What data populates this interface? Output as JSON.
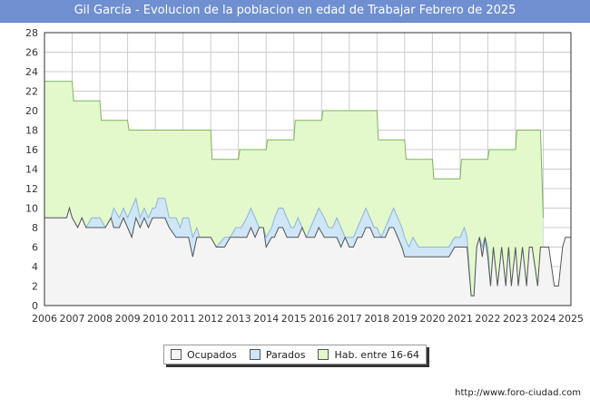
{
  "chart_data": {
    "type": "area",
    "title": "Gil García - Evolucion de la poblacion en edad de Trabajar Febrero de 2025",
    "xlabel": "",
    "ylabel": "",
    "xlim": [
      2006,
      2025
    ],
    "ylim": [
      0,
      28
    ],
    "x_ticks": [
      "2006",
      "2007",
      "2008",
      "2009",
      "2010",
      "2011",
      "2012",
      "2013",
      "2014",
      "2015",
      "2016",
      "2017",
      "2018",
      "2019",
      "2020",
      "2021",
      "2022",
      "2023",
      "2024",
      "2025"
    ],
    "y_ticks": [
      "0",
      "2",
      "4",
      "6",
      "8",
      "10",
      "12",
      "14",
      "16",
      "18",
      "20",
      "22",
      "24",
      "26",
      "28"
    ],
    "legend": [
      "Ocupados",
      "Parados",
      "Hab. entre 16-64"
    ],
    "colors": {
      "ocupados_fill": "#f4f4f4",
      "ocupados_line": "#555555",
      "parados_fill": "#cfe6f7",
      "parados_line": "#8fb4d9",
      "hab_fill": "#e3f9cc",
      "hab_line": "#7fb35a",
      "grid": "#cccccc"
    },
    "series": [
      {
        "name": "Hab. entre 16-64",
        "points": [
          [
            2006,
            23
          ],
          [
            2007,
            23
          ],
          [
            2007.05,
            21
          ],
          [
            2008,
            21
          ],
          [
            2008.05,
            19
          ],
          [
            2009,
            19
          ],
          [
            2009.05,
            18
          ],
          [
            2012,
            18
          ],
          [
            2012.05,
            15
          ],
          [
            2013,
            15
          ],
          [
            2013.05,
            16
          ],
          [
            2014,
            16
          ],
          [
            2014.05,
            17
          ],
          [
            2015,
            17
          ],
          [
            2015.05,
            19
          ],
          [
            2016,
            19
          ],
          [
            2016.05,
            20
          ],
          [
            2018,
            20
          ],
          [
            2018.05,
            17
          ],
          [
            2019,
            17
          ],
          [
            2019.05,
            15
          ],
          [
            2020,
            15
          ],
          [
            2020.05,
            13
          ],
          [
            2021,
            13
          ],
          [
            2021.05,
            15
          ],
          [
            2022,
            15
          ],
          [
            2022.05,
            16
          ],
          [
            2023,
            16
          ],
          [
            2023.05,
            18
          ],
          [
            2023.9,
            18
          ],
          [
            2024,
            9
          ]
        ]
      },
      {
        "name": "Parados",
        "points": [
          [
            2006,
            9
          ],
          [
            2006.8,
            9
          ],
          [
            2006.9,
            10
          ],
          [
            2007,
            9
          ],
          [
            2007.2,
            8
          ],
          [
            2007.35,
            9
          ],
          [
            2007.5,
            8
          ],
          [
            2007.7,
            9
          ],
          [
            2008,
            9
          ],
          [
            2008.2,
            8
          ],
          [
            2008.4,
            9
          ],
          [
            2008.5,
            10
          ],
          [
            2008.7,
            9
          ],
          [
            2008.85,
            10
          ],
          [
            2009,
            9
          ],
          [
            2009.15,
            10
          ],
          [
            2009.3,
            11
          ],
          [
            2009.45,
            9
          ],
          [
            2009.6,
            10
          ],
          [
            2009.75,
            9
          ],
          [
            2009.9,
            10
          ],
          [
            2010,
            10
          ],
          [
            2010.1,
            11
          ],
          [
            2010.35,
            11
          ],
          [
            2010.5,
            9
          ],
          [
            2010.75,
            9
          ],
          [
            2010.9,
            8
          ],
          [
            2011,
            9
          ],
          [
            2011.2,
            9
          ],
          [
            2011.35,
            7
          ],
          [
            2011.5,
            8
          ],
          [
            2011.6,
            7
          ],
          [
            2012,
            7
          ],
          [
            2012.2,
            6
          ],
          [
            2012.5,
            7
          ],
          [
            2012.7,
            7
          ],
          [
            2012.9,
            8
          ],
          [
            2013.1,
            8
          ],
          [
            2013.3,
            9
          ],
          [
            2013.45,
            10
          ],
          [
            2013.6,
            9
          ],
          [
            2013.75,
            8
          ],
          [
            2013.9,
            8
          ],
          [
            2014,
            7
          ],
          [
            2014.2,
            8
          ],
          [
            2014.3,
            9
          ],
          [
            2014.45,
            10
          ],
          [
            2014.6,
            10
          ],
          [
            2014.75,
            9
          ],
          [
            2014.9,
            8
          ],
          [
            2015,
            8
          ],
          [
            2015.15,
            9
          ],
          [
            2015.3,
            8
          ],
          [
            2015.45,
            7
          ],
          [
            2015.6,
            8
          ],
          [
            2015.75,
            9
          ],
          [
            2015.9,
            10
          ],
          [
            2016.1,
            9
          ],
          [
            2016.25,
            8
          ],
          [
            2016.4,
            8
          ],
          [
            2016.55,
            9
          ],
          [
            2016.7,
            8
          ],
          [
            2016.85,
            7
          ],
          [
            2017,
            7
          ],
          [
            2017.15,
            7
          ],
          [
            2017.3,
            8
          ],
          [
            2017.45,
            9
          ],
          [
            2017.6,
            10
          ],
          [
            2017.75,
            9
          ],
          [
            2017.9,
            8
          ],
          [
            2018,
            8
          ],
          [
            2018.15,
            7
          ],
          [
            2018.3,
            8
          ],
          [
            2018.45,
            9
          ],
          [
            2018.6,
            10
          ],
          [
            2018.75,
            9
          ],
          [
            2018.9,
            8
          ],
          [
            2019,
            7
          ],
          [
            2019.15,
            6
          ],
          [
            2019.3,
            7
          ],
          [
            2019.5,
            6
          ],
          [
            2020,
            6
          ],
          [
            2020.2,
            6
          ],
          [
            2020.4,
            6
          ],
          [
            2020.6,
            6
          ],
          [
            2020.8,
            7
          ],
          [
            2021,
            7
          ],
          [
            2021.15,
            8
          ],
          [
            2021.25,
            7
          ],
          [
            2021.4,
            1
          ],
          [
            2021.5,
            1
          ],
          [
            2021.6,
            6
          ],
          [
            2021.7,
            7
          ],
          [
            2021.8,
            6
          ],
          [
            2021.9,
            7
          ],
          [
            2022,
            6
          ],
          [
            2022.1,
            2
          ],
          [
            2022.2,
            6
          ],
          [
            2022.35,
            2
          ],
          [
            2022.5,
            6
          ],
          [
            2022.65,
            2
          ],
          [
            2022.75,
            6
          ],
          [
            2022.85,
            2
          ],
          [
            2023,
            6
          ],
          [
            2023.1,
            2
          ],
          [
            2023.25,
            6
          ],
          [
            2023.4,
            2
          ],
          [
            2023.5,
            6
          ],
          [
            2023.6,
            6
          ],
          [
            2023.8,
            2
          ],
          [
            2023.9,
            6
          ],
          [
            2024,
            6
          ]
        ]
      },
      {
        "name": "Ocupados",
        "points": [
          [
            2006,
            9
          ],
          [
            2006.8,
            9
          ],
          [
            2006.9,
            10
          ],
          [
            2007,
            9
          ],
          [
            2007.2,
            8
          ],
          [
            2007.35,
            9
          ],
          [
            2007.5,
            8
          ],
          [
            2007.7,
            8
          ],
          [
            2008,
            8
          ],
          [
            2008.2,
            8
          ],
          [
            2008.4,
            9
          ],
          [
            2008.5,
            8
          ],
          [
            2008.7,
            8
          ],
          [
            2008.85,
            9
          ],
          [
            2009,
            8
          ],
          [
            2009.15,
            7
          ],
          [
            2009.3,
            9
          ],
          [
            2009.45,
            8
          ],
          [
            2009.6,
            9
          ],
          [
            2009.75,
            8
          ],
          [
            2009.9,
            9
          ],
          [
            2010,
            9
          ],
          [
            2010.1,
            9
          ],
          [
            2010.35,
            9
          ],
          [
            2010.5,
            8
          ],
          [
            2010.75,
            7
          ],
          [
            2010.9,
            7
          ],
          [
            2011,
            7
          ],
          [
            2011.2,
            7
          ],
          [
            2011.35,
            5
          ],
          [
            2011.5,
            7
          ],
          [
            2011.6,
            7
          ],
          [
            2012,
            7
          ],
          [
            2012.2,
            6
          ],
          [
            2012.5,
            6
          ],
          [
            2012.7,
            7
          ],
          [
            2012.9,
            7
          ],
          [
            2013.1,
            7
          ],
          [
            2013.3,
            7
          ],
          [
            2013.45,
            8
          ],
          [
            2013.6,
            7
          ],
          [
            2013.75,
            8
          ],
          [
            2013.9,
            8
          ],
          [
            2014,
            6
          ],
          [
            2014.2,
            7
          ],
          [
            2014.3,
            7
          ],
          [
            2014.45,
            8
          ],
          [
            2014.6,
            8
          ],
          [
            2014.75,
            7
          ],
          [
            2014.9,
            7
          ],
          [
            2015,
            7
          ],
          [
            2015.15,
            7
          ],
          [
            2015.3,
            8
          ],
          [
            2015.45,
            7
          ],
          [
            2015.6,
            7
          ],
          [
            2015.75,
            7
          ],
          [
            2015.9,
            8
          ],
          [
            2016.1,
            7
          ],
          [
            2016.25,
            7
          ],
          [
            2016.4,
            7
          ],
          [
            2016.55,
            7
          ],
          [
            2016.7,
            6
          ],
          [
            2016.85,
            7
          ],
          [
            2017,
            6
          ],
          [
            2017.15,
            6
          ],
          [
            2017.3,
            7
          ],
          [
            2017.45,
            7
          ],
          [
            2017.6,
            8
          ],
          [
            2017.75,
            8
          ],
          [
            2017.9,
            7
          ],
          [
            2018,
            7
          ],
          [
            2018.15,
            7
          ],
          [
            2018.3,
            7
          ],
          [
            2018.45,
            8
          ],
          [
            2018.6,
            8
          ],
          [
            2018.75,
            7
          ],
          [
            2018.9,
            6
          ],
          [
            2019,
            5
          ],
          [
            2019.15,
            5
          ],
          [
            2019.3,
            5
          ],
          [
            2019.5,
            5
          ],
          [
            2020,
            5
          ],
          [
            2020.2,
            5
          ],
          [
            2020.4,
            5
          ],
          [
            2020.6,
            5
          ],
          [
            2020.8,
            6
          ],
          [
            2021,
            6
          ],
          [
            2021.15,
            6
          ],
          [
            2021.25,
            6
          ],
          [
            2021.4,
            1
          ],
          [
            2021.5,
            1
          ],
          [
            2021.6,
            6
          ],
          [
            2021.7,
            7
          ],
          [
            2021.8,
            5
          ],
          [
            2021.9,
            7
          ],
          [
            2022,
            5
          ],
          [
            2022.1,
            2
          ],
          [
            2022.2,
            6
          ],
          [
            2022.35,
            2
          ],
          [
            2022.5,
            6
          ],
          [
            2022.65,
            2
          ],
          [
            2022.75,
            6
          ],
          [
            2022.85,
            2
          ],
          [
            2023,
            6
          ],
          [
            2023.1,
            2
          ],
          [
            2023.25,
            6
          ],
          [
            2023.4,
            2
          ],
          [
            2023.5,
            6
          ],
          [
            2023.6,
            6
          ],
          [
            2023.8,
            2
          ],
          [
            2023.9,
            6
          ],
          [
            2024,
            6
          ],
          [
            2024.2,
            6
          ],
          [
            2024.4,
            2
          ],
          [
            2024.55,
            2
          ],
          [
            2024.7,
            6
          ],
          [
            2024.8,
            7
          ],
          [
            2025,
            7
          ]
        ]
      }
    ]
  },
  "legend_labels": {
    "ocupados": "Ocupados",
    "parados": "Parados",
    "hab": "Hab. entre 16-64"
  },
  "footer": {
    "url": "http://www.foro-ciudad.com"
  }
}
